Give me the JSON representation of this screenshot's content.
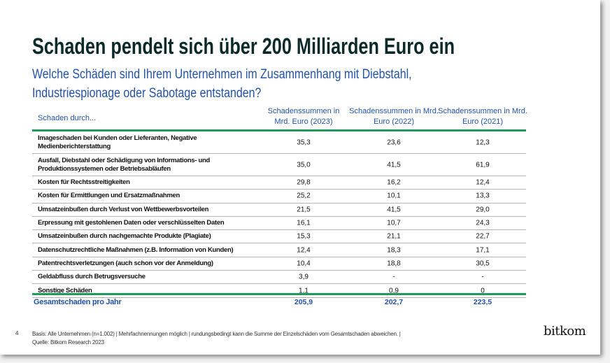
{
  "title": "Schaden pendelt sich über 200 Milliarden Euro ein",
  "subtitle_line1": "Welche Schäden sind Ihrem Unternehmen im Zusammenhang mit Diebstahl,",
  "subtitle_line2": "Industriespionage oder Sabotage entstanden?",
  "table": {
    "header": {
      "label": "Schaden durch...",
      "col2023_l1": "Schadenssummen in",
      "col2023_l2": "Mrd. Euro (2023)",
      "col2022_l1": "Schadenssummen in Mrd.",
      "col2022_l2": "Euro (2022)",
      "col2021_l1": "Schadenssummen in Mrd.",
      "col2021_l2": "Euro (2021)"
    },
    "rows": [
      {
        "l1": "Imageschaden bei Kunden oder Lieferanten, Negative",
        "l2": "Medienberichterstattung",
        "v2023": "35,3",
        "v2022": "23,6",
        "v2021": "12,3"
      },
      {
        "l1": "Ausfall, Diebstahl oder Schädigung von Informations- und",
        "l2": "Produktionssystemen oder Betriebsabläufen",
        "v2023": "35,0",
        "v2022": "41,5",
        "v2021": "61,9"
      },
      {
        "l1": "Kosten für Rechtsstreitigkeiten",
        "v2023": "29,8",
        "v2022": "16,2",
        "v2021": "12,4"
      },
      {
        "l1": "Kosten für Ermittlungen und Ersatzmaßnahmen",
        "v2023": "25,2",
        "v2022": "10,1",
        "v2021": "13,3"
      },
      {
        "l1": "Umsatzeinbußen durch Verlust von Wettbewerbsvorteilen",
        "v2023": "21,5",
        "v2022": "41,5",
        "v2021": "29,0"
      },
      {
        "l1": "Erpressung mit gestohlenen Daten oder verschlüsselten Daten",
        "v2023": "16,1",
        "v2022": "10,7",
        "v2021": "24,3"
      },
      {
        "l1": "Umsatzeinbußen durch nachgemachte Produkte (Plagiate)",
        "v2023": "15,3",
        "v2022": "21,1",
        "v2021": "22,7"
      },
      {
        "l1": "Datenschutzrechtliche Maßnahmen (z.B. Information von Kunden)",
        "v2023": "12,4",
        "v2022": "18,3",
        "v2021": "17,1"
      },
      {
        "l1": "Patentrechtsverletzungen (auch schon vor der Anmeldung)",
        "v2023": "10,4",
        "v2022": "18,8",
        "v2021": "30,5"
      },
      {
        "l1": "Geldabfluss durch Betrugsversuche",
        "v2023": "3,9",
        "v2022": "-",
        "v2021": "-"
      },
      {
        "l1": "Sonstige Schäden",
        "v2023": "1,1",
        "v2022": "0,9",
        "v2021": "0"
      }
    ],
    "total": {
      "label": "Gesamtschaden pro Jahr",
      "v2023": "205,9",
      "v2022": "202,7",
      "v2021": "223,5"
    }
  },
  "footer": {
    "page": "4",
    "line1": "Basis: Alle Unternehmen (n=1.002) | Mehrfachnennungen möglich | rundungsbedingt kann die Summe der Einzelschäden vom Gesamtschaden abweichen. |",
    "line2": "Quelle: Bitkom Research 2023"
  },
  "logo": "bitkom",
  "colors": {
    "accent_green": "#1f9a5a",
    "blue": "#2352a8",
    "title": "#0d2a2a"
  }
}
